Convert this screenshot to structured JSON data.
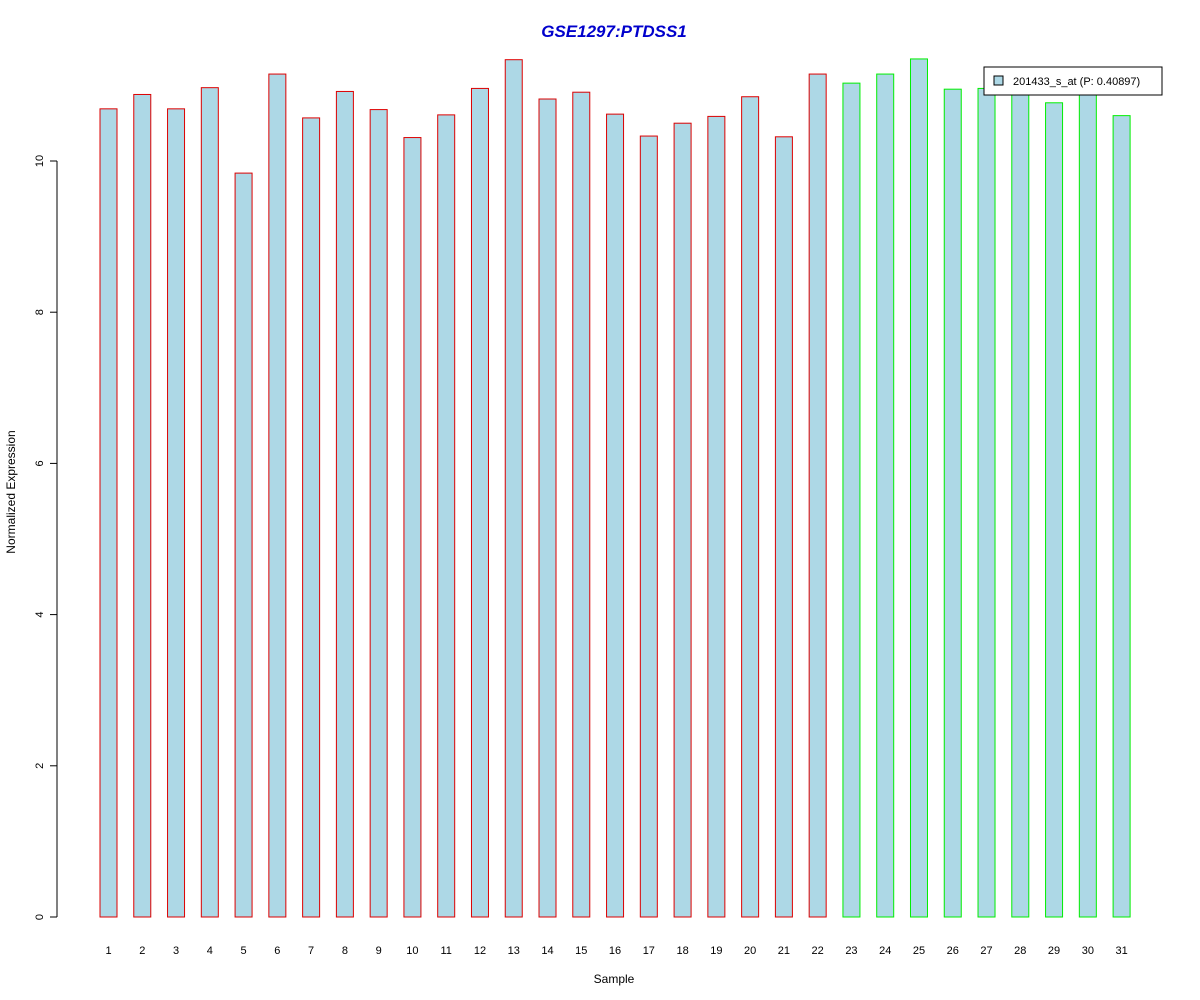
{
  "chart_data": {
    "type": "bar",
    "title": "GSE1297:PTDSS1",
    "xlabel": "Sample",
    "ylabel": "Normalized Expression",
    "ylim": [
      0,
      11.4
    ],
    "yticks": [
      0,
      2,
      4,
      6,
      8,
      10
    ],
    "categories": [
      "1",
      "2",
      "3",
      "4",
      "5",
      "6",
      "7",
      "8",
      "9",
      "10",
      "11",
      "12",
      "13",
      "14",
      "15",
      "16",
      "17",
      "18",
      "19",
      "20",
      "21",
      "22",
      "23",
      "24",
      "25",
      "26",
      "27",
      "28",
      "29",
      "30",
      "31"
    ],
    "series": [
      {
        "name": "201433_s_at (P: 0.40897)",
        "values": [
          10.69,
          10.88,
          10.69,
          10.97,
          9.84,
          11.15,
          10.57,
          10.92,
          10.68,
          10.31,
          10.61,
          10.96,
          11.34,
          10.82,
          10.91,
          10.62,
          10.33,
          10.5,
          10.59,
          10.85,
          10.32,
          11.15,
          11.03,
          11.15,
          11.35,
          10.95,
          10.96,
          10.91,
          10.77,
          10.88,
          10.6
        ]
      }
    ],
    "groups": [
      {
        "samples": [
          1,
          22
        ],
        "border_color": "#dd0000"
      },
      {
        "samples": [
          23,
          31
        ],
        "border_color": "#00ee00"
      }
    ],
    "grid": false,
    "legend_position": "top-right"
  },
  "colors": {
    "bar_fill": "#add8e6",
    "title": "#0000cc",
    "axis": "#000000"
  }
}
